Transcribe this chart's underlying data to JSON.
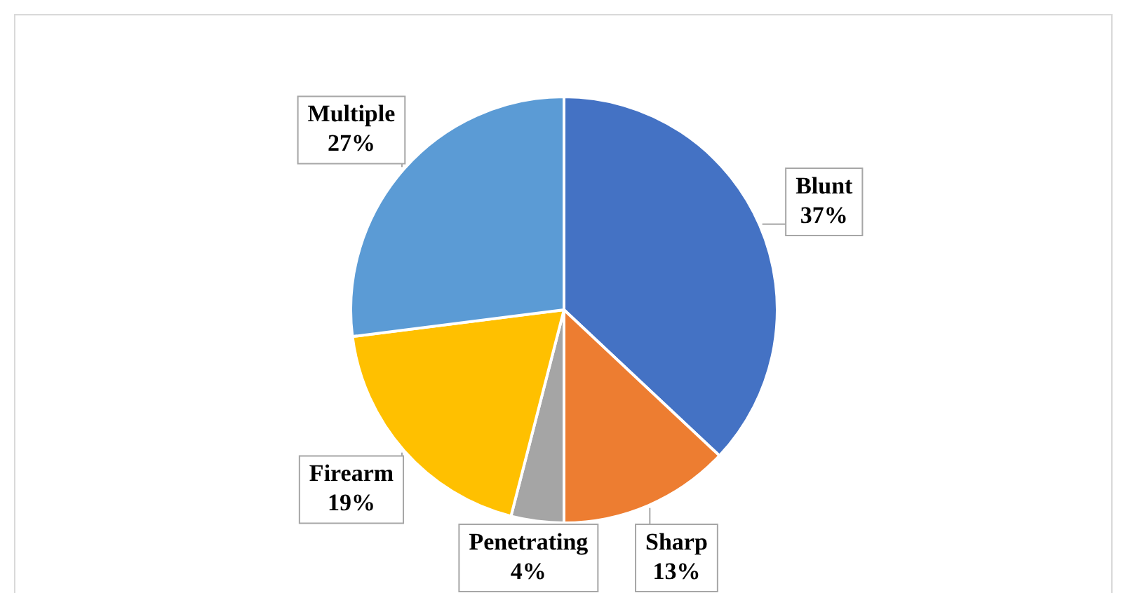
{
  "chart_data": {
    "type": "pie",
    "categories": [
      "Blunt",
      "Sharp",
      "Penetrating",
      "Firearm",
      "Multiple"
    ],
    "values": [
      37,
      13,
      4,
      19,
      27
    ],
    "colors": [
      "#4472c4",
      "#ed7d31",
      "#a5a5a5",
      "#ffc000",
      "#5b9bd5"
    ],
    "value_labels": [
      "37%",
      "13%",
      "4%",
      "19%",
      "27%"
    ],
    "legend": false
  }
}
